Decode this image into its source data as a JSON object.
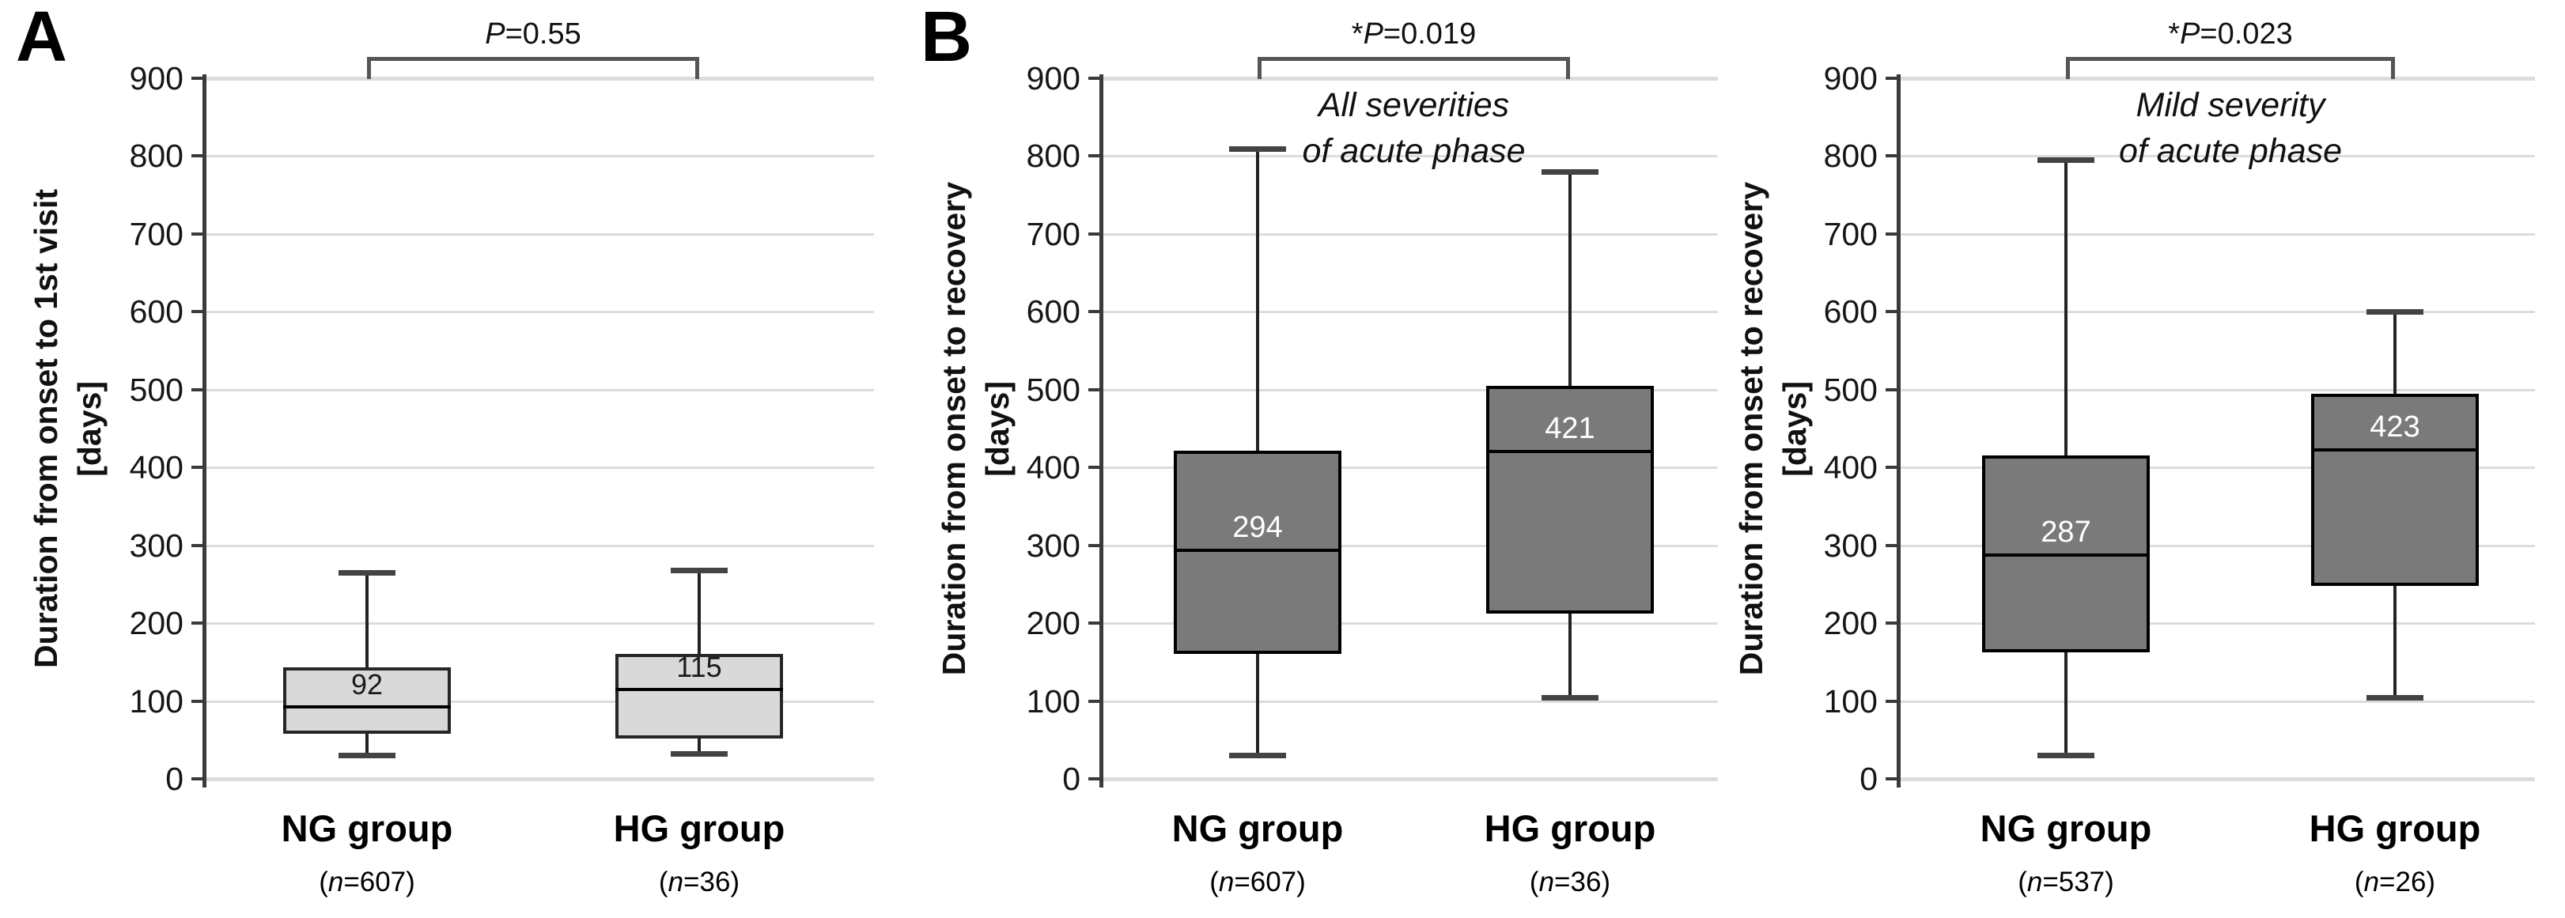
{
  "figure": {
    "panels": [
      {
        "letter": "A"
      },
      {
        "letter": "B"
      }
    ]
  },
  "colors": {
    "gridline": "#dcdcdc",
    "axis": "#3a3a3a",
    "whisker": "#222222",
    "whisker_cap": "#434343",
    "bracket": "#555555",
    "median_line": "#000000",
    "panel_a_box_fill": "#d9d9d9",
    "panel_a_box_border": "#262626",
    "panel_b_box_fill": "#7a7a7a",
    "panel_b_box_border": "#000000"
  },
  "chart_data": [
    {
      "type": "boxplot",
      "panel": "A",
      "ylabel": "Duration from onset to 1st visit",
      "ylabel_unit": "[days]",
      "ylim": [
        0,
        900
      ],
      "ytick_step": 100,
      "grid": true,
      "p_label": "P=0.55",
      "annotation_lines": [],
      "box_fill": "#d9d9d9",
      "box_border": "#262626",
      "median_label_color": "#1a1a1a",
      "median_label_size": 36,
      "groups": [
        {
          "label": "NG group",
          "n_label": "(n=607)",
          "min": 30,
          "q1": 58,
          "median": 92,
          "q3": 143,
          "max": 265,
          "median_label": "92"
        },
        {
          "label": "HG group",
          "n_label": "(n=36)",
          "min": 33,
          "q1": 52,
          "median": 115,
          "q3": 160,
          "max": 268,
          "median_label": "115"
        }
      ]
    },
    {
      "type": "boxplot",
      "panel": "B-left",
      "ylabel": "Duration from onset to recovery",
      "ylabel_unit": "[days]",
      "ylim": [
        0,
        900
      ],
      "ytick_step": 100,
      "grid": true,
      "p_label": "*P=0.019",
      "annotation_lines": [
        "All severities",
        "of acute phase"
      ],
      "box_fill": "#7a7a7a",
      "box_border": "#000000",
      "median_label_color": "#ffffff",
      "median_label_size": 38,
      "groups": [
        {
          "label": "NG group",
          "n_label": "(n=607)",
          "min": 30,
          "q1": 160,
          "median": 294,
          "q3": 422,
          "max": 810,
          "median_label": "294"
        },
        {
          "label": "HG group",
          "n_label": "(n=36)",
          "min": 105,
          "q1": 212,
          "median": 421,
          "q3": 505,
          "max": 780,
          "median_label": "421"
        }
      ]
    },
    {
      "type": "boxplot",
      "panel": "B-right",
      "ylabel": "Duration from onset to recovery",
      "ylabel_unit": "[days]",
      "ylim": [
        0,
        900
      ],
      "ytick_step": 100,
      "grid": true,
      "p_label": "*P=0.023",
      "annotation_lines": [
        "Mild severity",
        "of acute phase"
      ],
      "box_fill": "#7a7a7a",
      "box_border": "#000000",
      "median_label_color": "#ffffff",
      "median_label_size": 38,
      "groups": [
        {
          "label": "NG group",
          "n_label": "(n=537)",
          "min": 30,
          "q1": 163,
          "median": 287,
          "q3": 415,
          "max": 795,
          "median_label": "287"
        },
        {
          "label": "HG group",
          "n_label": "(n=26)",
          "min": 105,
          "q1": 248,
          "median": 423,
          "q3": 495,
          "max": 600,
          "median_label": "423"
        }
      ]
    }
  ]
}
